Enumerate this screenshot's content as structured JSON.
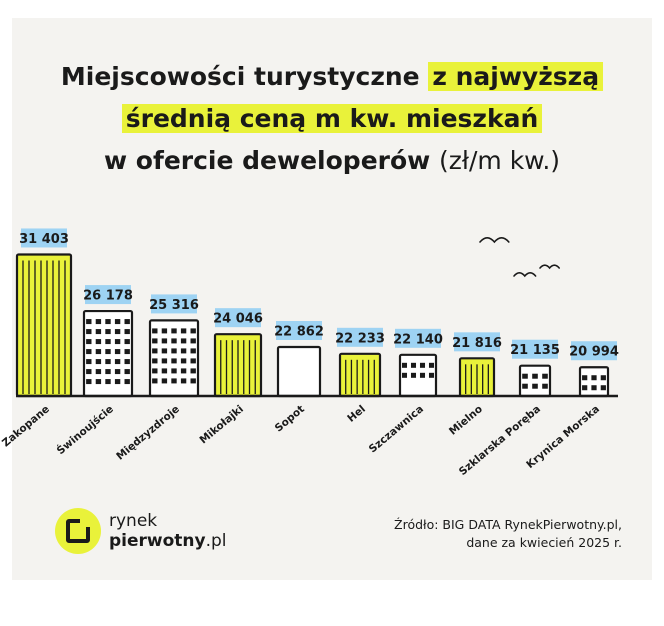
{
  "title": {
    "part1": "Miejscowości turystyczne",
    "part2": "z najwyższą",
    "part3": "średnią ceną m kw. mieszkań",
    "part4": "w ofercie deweloperów",
    "unit": "(zł/m kw.)"
  },
  "chart_data": {
    "type": "bar",
    "categories": [
      "Zakopane",
      "Świnoujście",
      "Międzyzdroje",
      "Mikołajki",
      "Sopot",
      "Hel",
      "Szczawnica",
      "Mielno",
      "Szklarska Poręba",
      "Krynica Morska"
    ],
    "values": [
      31403,
      26178,
      25316,
      24046,
      22862,
      22233,
      22140,
      21816,
      21135,
      20994
    ],
    "value_labels": [
      "31 403",
      "26 178",
      "25 316",
      "24 046",
      "22 862",
      "22 233",
      "22 140",
      "21 816",
      "21 135",
      "20 994"
    ],
    "highlighted": [
      true,
      false,
      false,
      true,
      false,
      true,
      false,
      true,
      false,
      false
    ],
    "title": "",
    "xlabel": "",
    "ylabel": "",
    "grid": false,
    "legend": "none"
  },
  "colors": {
    "highlight": "#e9f23a",
    "label_bg": "#9ed3f3",
    "ink": "#1a1a1a",
    "background": "#f4f3f0"
  },
  "logo": {
    "line1": "rynek",
    "line2a": "pierwotny",
    "line2b": ".pl"
  },
  "source": {
    "line1": "Źródło: BIG DATA RynekPierwotny.pl,",
    "line2": "dane za kwiecień 2025 r."
  }
}
